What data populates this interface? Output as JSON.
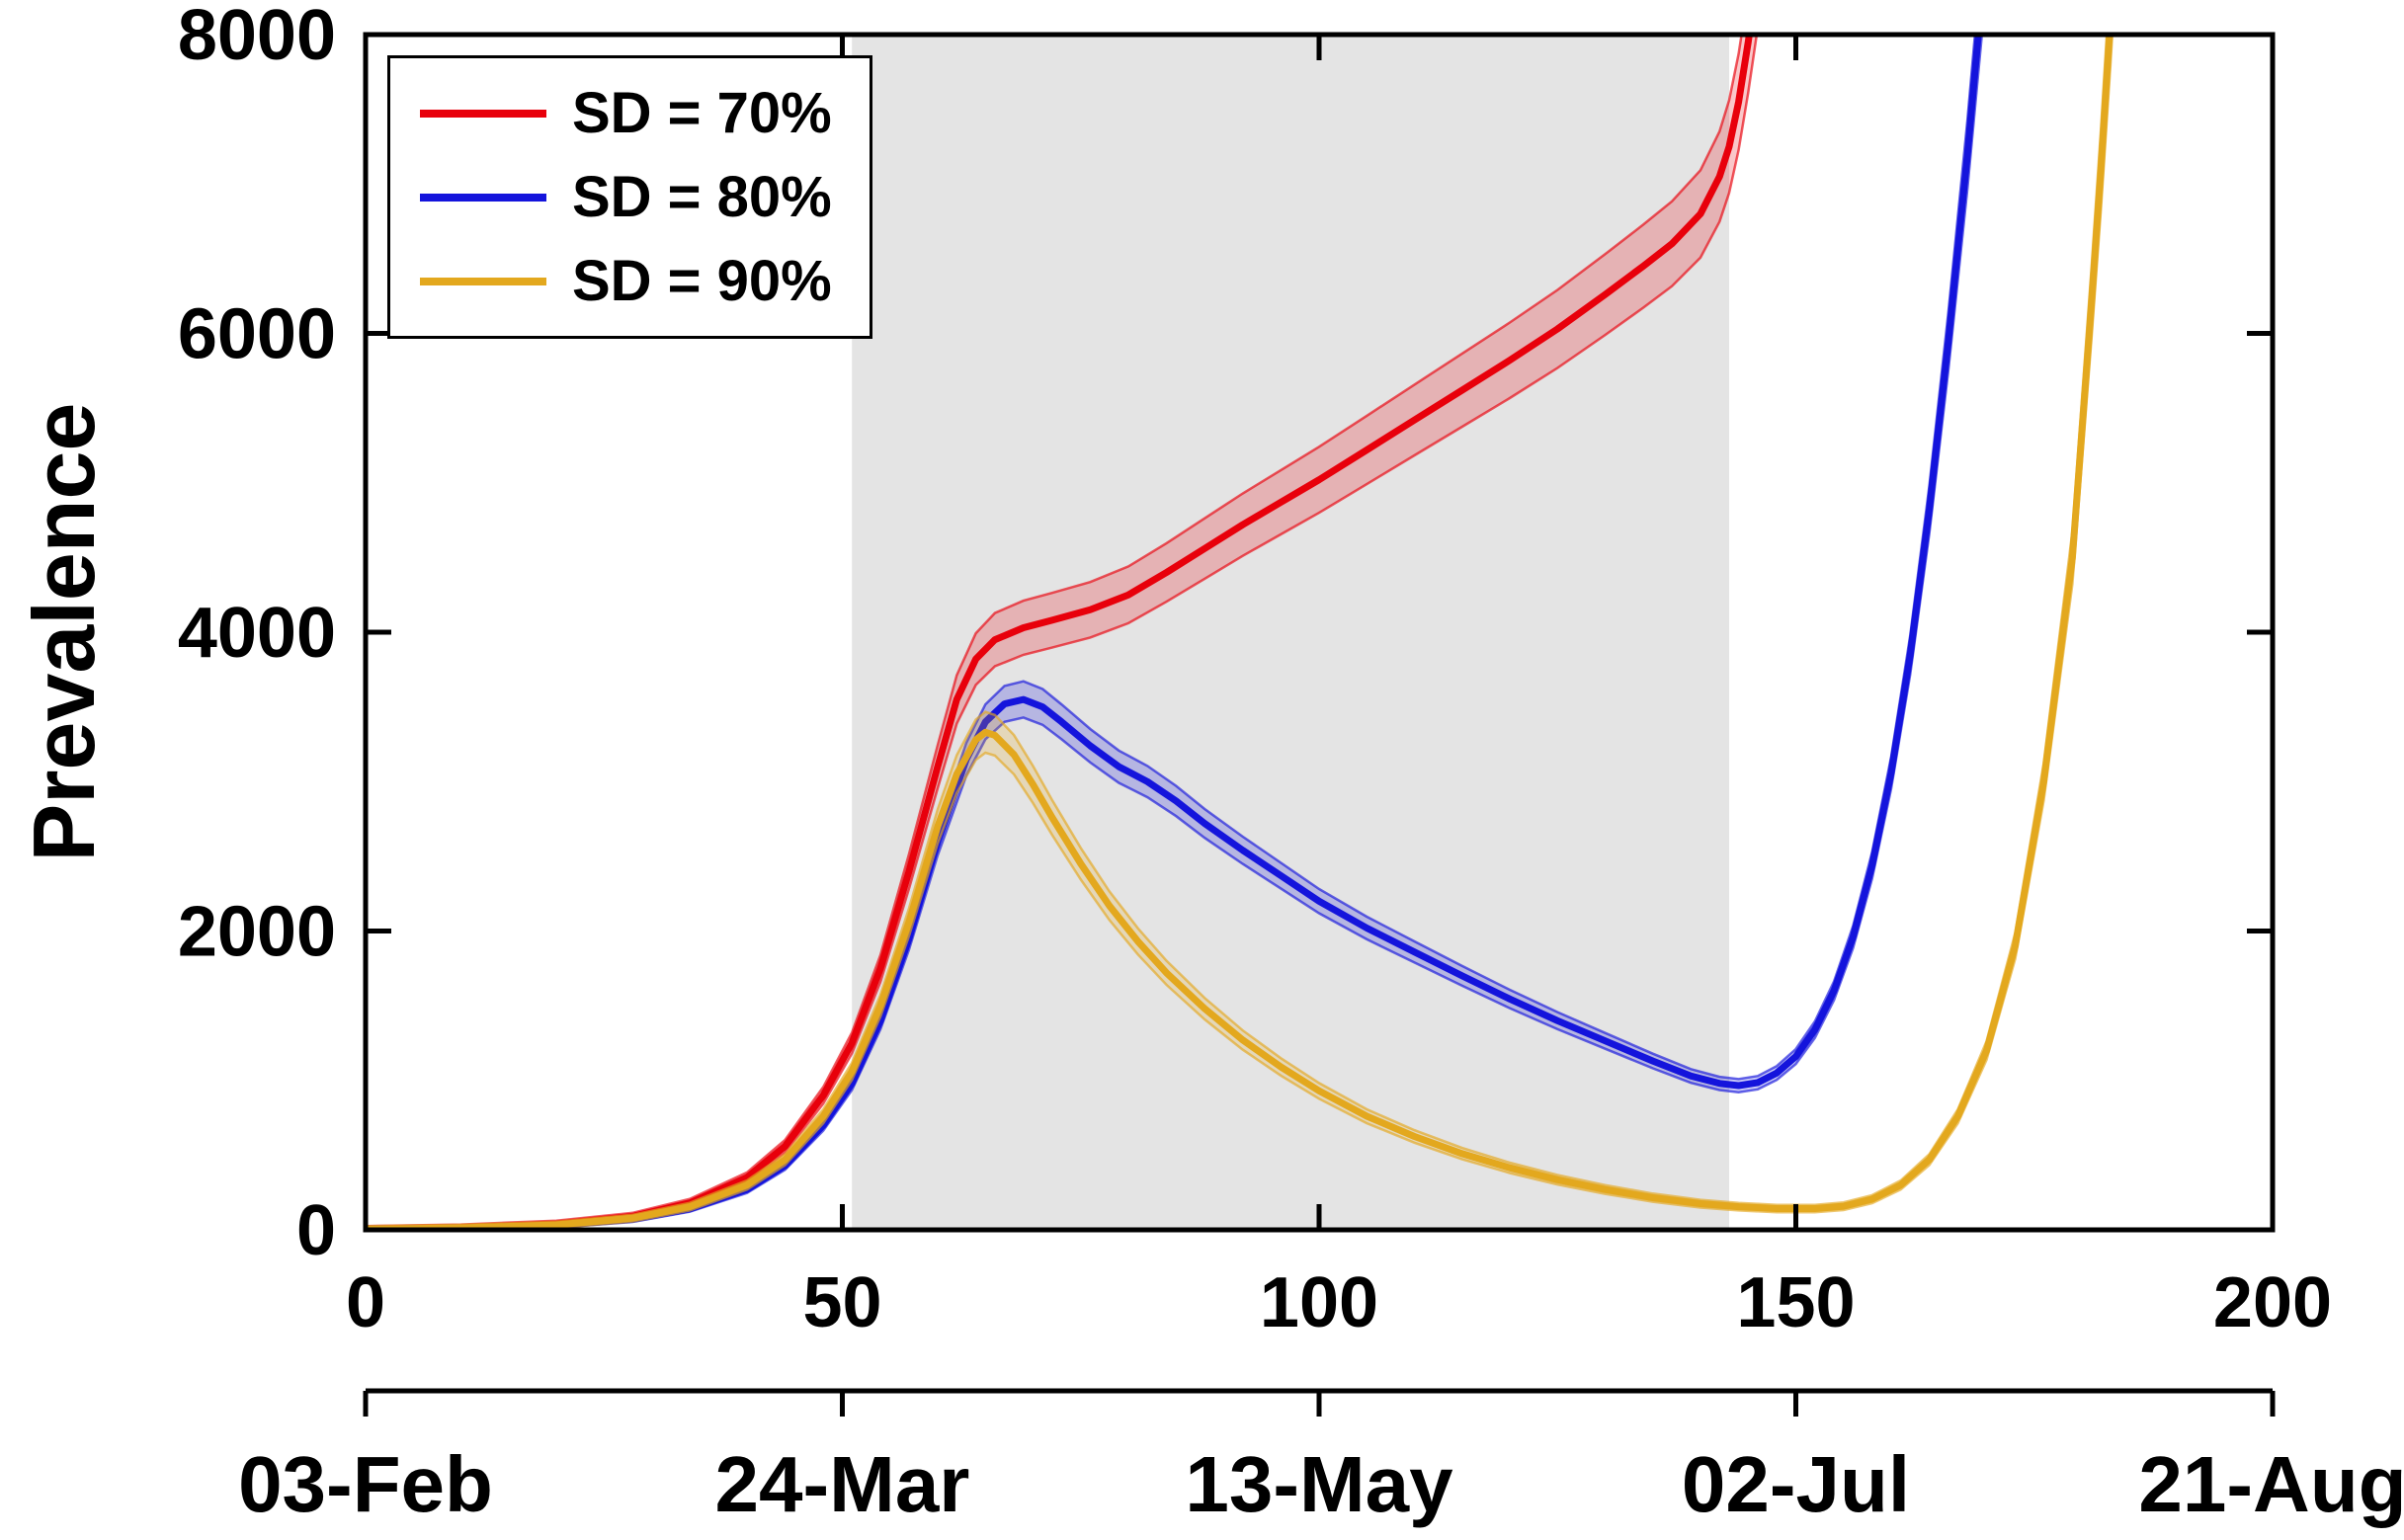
{
  "figure": {
    "background": "#ffffff",
    "axis_color": "#000000",
    "shading_color": "#e4e4e4"
  },
  "chart_data": {
    "type": "line",
    "title": "",
    "xlabel": "",
    "ylabel": "Prevalence",
    "xlim": [
      0,
      200
    ],
    "ylim": [
      0,
      8000
    ],
    "x_ticks": [
      0,
      50,
      100,
      150,
      200
    ],
    "y_ticks": [
      0,
      2000,
      4000,
      6000,
      8000
    ],
    "date_ticks": [
      {
        "x": 0,
        "label": "03-Feb"
      },
      {
        "x": 50,
        "label": "24-Mar"
      },
      {
        "x": 100,
        "label": "13-May"
      },
      {
        "x": 150,
        "label": "02-Jul"
      },
      {
        "x": 200,
        "label": "21-Aug"
      }
    ],
    "grid": false,
    "legend_position": "top-left",
    "shaded_region": {
      "x0": 51,
      "x1": 143,
      "color": "#e4e4e4"
    },
    "series": [
      {
        "name": "SD = 70%",
        "color": "#e8000b",
        "band_frac": 0.04,
        "band_pad": 20,
        "points": [
          [
            0,
            5
          ],
          [
            10,
            15
          ],
          [
            20,
            40
          ],
          [
            28,
            90
          ],
          [
            34,
            180
          ],
          [
            40,
            350
          ],
          [
            44,
            560
          ],
          [
            48,
            900
          ],
          [
            51,
            1250
          ],
          [
            54,
            1750
          ],
          [
            57,
            2400
          ],
          [
            60,
            3100
          ],
          [
            62,
            3550
          ],
          [
            64,
            3820
          ],
          [
            66,
            3950
          ],
          [
            69,
            4030
          ],
          [
            72,
            4080
          ],
          [
            76,
            4150
          ],
          [
            80,
            4250
          ],
          [
            84,
            4400
          ],
          [
            88,
            4560
          ],
          [
            92,
            4720
          ],
          [
            96,
            4870
          ],
          [
            100,
            5020
          ],
          [
            105,
            5220
          ],
          [
            110,
            5420
          ],
          [
            115,
            5620
          ],
          [
            120,
            5820
          ],
          [
            125,
            6030
          ],
          [
            130,
            6260
          ],
          [
            134,
            6450
          ],
          [
            137,
            6600
          ],
          [
            140,
            6800
          ],
          [
            142,
            7050
          ],
          [
            143,
            7250
          ],
          [
            144,
            7550
          ],
          [
            145,
            7950
          ],
          [
            146,
            8400
          ],
          [
            147,
            9100
          ]
        ]
      },
      {
        "name": "SD = 80%",
        "color": "#1414dc",
        "band_frac": 0.03,
        "band_pad": 15,
        "points": [
          [
            0,
            4
          ],
          [
            10,
            12
          ],
          [
            20,
            30
          ],
          [
            28,
            70
          ],
          [
            34,
            140
          ],
          [
            40,
            270
          ],
          [
            44,
            430
          ],
          [
            48,
            700
          ],
          [
            51,
            980
          ],
          [
            54,
            1400
          ],
          [
            57,
            1950
          ],
          [
            60,
            2600
          ],
          [
            63,
            3150
          ],
          [
            65,
            3400
          ],
          [
            67,
            3520
          ],
          [
            69,
            3550
          ],
          [
            71,
            3500
          ],
          [
            73,
            3400
          ],
          [
            76,
            3240
          ],
          [
            79,
            3100
          ],
          [
            82,
            3000
          ],
          [
            85,
            2870
          ],
          [
            88,
            2720
          ],
          [
            92,
            2540
          ],
          [
            96,
            2370
          ],
          [
            100,
            2200
          ],
          [
            105,
            2020
          ],
          [
            110,
            1860
          ],
          [
            115,
            1700
          ],
          [
            120,
            1545
          ],
          [
            125,
            1400
          ],
          [
            130,
            1265
          ],
          [
            135,
            1130
          ],
          [
            139,
            1030
          ],
          [
            142,
            980
          ],
          [
            144,
            965
          ],
          [
            146,
            985
          ],
          [
            148,
            1050
          ],
          [
            150,
            1160
          ],
          [
            152,
            1340
          ],
          [
            154,
            1600
          ],
          [
            156,
            1960
          ],
          [
            158,
            2440
          ],
          [
            160,
            3060
          ],
          [
            162,
            3850
          ],
          [
            164,
            4820
          ],
          [
            166,
            5950
          ],
          [
            168,
            7200
          ],
          [
            169,
            7900
          ],
          [
            170,
            8600
          ],
          [
            171,
            9500
          ]
        ]
      },
      {
        "name": "SD = 90%",
        "color": "#e3a81e",
        "band_frac": 0.035,
        "band_pad": 20,
        "points": [
          [
            0,
            4
          ],
          [
            10,
            13
          ],
          [
            20,
            33
          ],
          [
            28,
            78
          ],
          [
            34,
            155
          ],
          [
            40,
            300
          ],
          [
            44,
            470
          ],
          [
            48,
            760
          ],
          [
            51,
            1060
          ],
          [
            54,
            1500
          ],
          [
            57,
            2060
          ],
          [
            60,
            2700
          ],
          [
            62,
            3050
          ],
          [
            64,
            3280
          ],
          [
            65,
            3330
          ],
          [
            66,
            3310
          ],
          [
            68,
            3180
          ],
          [
            70,
            2980
          ],
          [
            72,
            2760
          ],
          [
            75,
            2450
          ],
          [
            78,
            2170
          ],
          [
            81,
            1930
          ],
          [
            84,
            1720
          ],
          [
            88,
            1480
          ],
          [
            92,
            1270
          ],
          [
            96,
            1090
          ],
          [
            100,
            930
          ],
          [
            105,
            760
          ],
          [
            110,
            625
          ],
          [
            115,
            510
          ],
          [
            120,
            415
          ],
          [
            125,
            335
          ],
          [
            130,
            270
          ],
          [
            135,
            215
          ],
          [
            140,
            175
          ],
          [
            144,
            155
          ],
          [
            148,
            142
          ],
          [
            152,
            142
          ],
          [
            155,
            158
          ],
          [
            158,
            205
          ],
          [
            161,
            300
          ],
          [
            164,
            470
          ],
          [
            167,
            760
          ],
          [
            170,
            1200
          ],
          [
            173,
            1900
          ],
          [
            176,
            3000
          ],
          [
            179,
            4500
          ],
          [
            181,
            6200
          ],
          [
            182,
            7100
          ],
          [
            183,
            8100
          ],
          [
            184,
            9200
          ]
        ]
      }
    ]
  }
}
